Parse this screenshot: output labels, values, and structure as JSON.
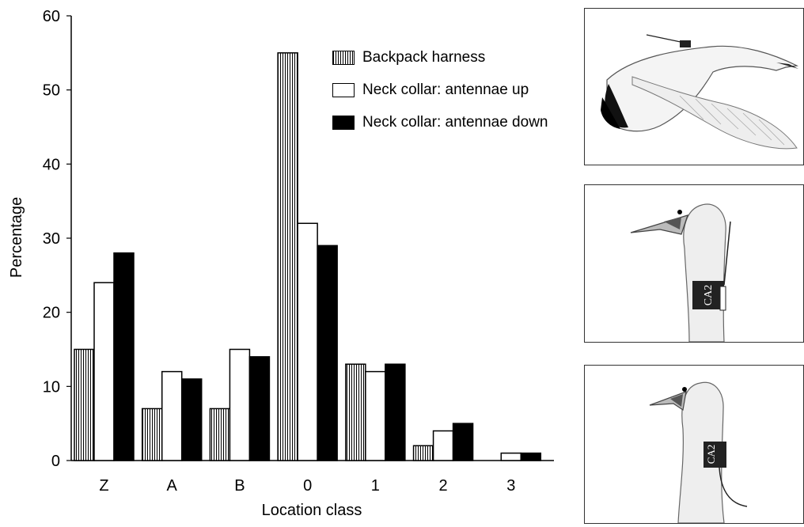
{
  "chart_data": {
    "type": "bar",
    "xlabel": "Location class",
    "ylabel": "Percentage",
    "ylim": [
      0,
      60
    ],
    "yticks": [
      0,
      10,
      20,
      30,
      40,
      50,
      60
    ],
    "categories": [
      "Z",
      "A",
      "B",
      "0",
      "1",
      "2",
      "3"
    ],
    "series": [
      {
        "name": "Backpack harness",
        "fill": "hatched",
        "values": [
          15,
          7,
          7,
          55,
          13,
          2,
          0
        ]
      },
      {
        "name": "Neck collar: antennae up",
        "fill": "white",
        "values": [
          24,
          12,
          15,
          32,
          12,
          4,
          1
        ]
      },
      {
        "name": "Neck collar: antennae down",
        "fill": "black",
        "values": [
          28,
          11,
          14,
          29,
          13,
          5,
          1
        ]
      }
    ],
    "legend_placement": "top-right",
    "grid": false
  },
  "panels": [
    {
      "name": "bird-flying-backpack-panel"
    },
    {
      "name": "bird-neck-collar-antenna-up-panel",
      "collar_label": "CA2"
    },
    {
      "name": "bird-neck-collar-antenna-down-panel",
      "collar_label": "CA2"
    }
  ]
}
